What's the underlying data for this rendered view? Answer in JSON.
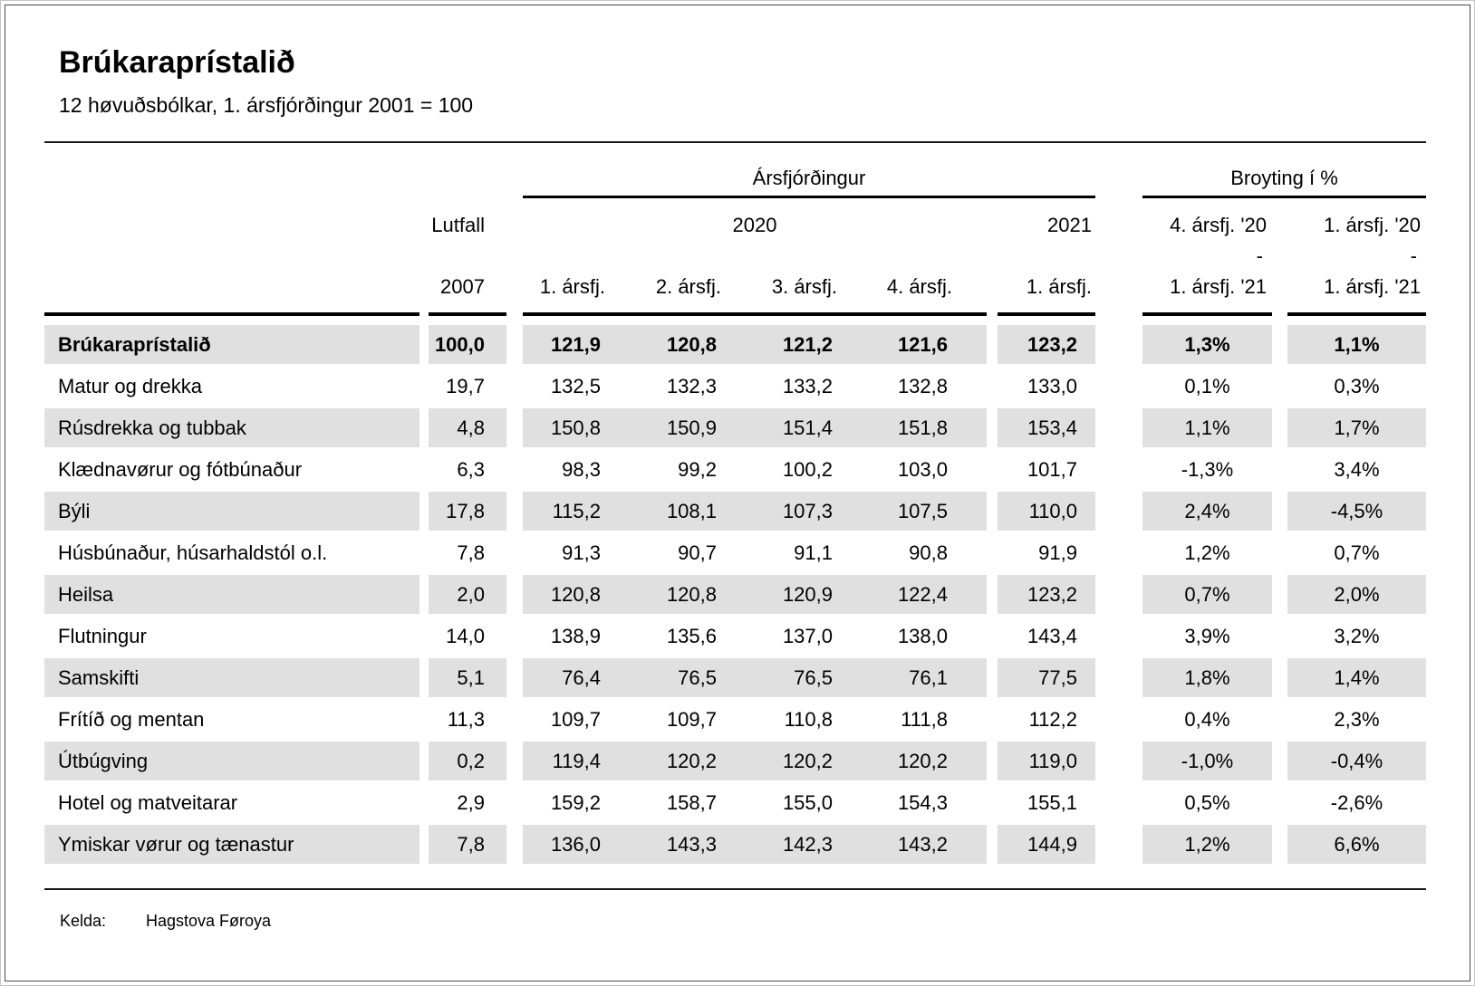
{
  "chart_data": {
    "type": "table",
    "title": "Brúkaraprístalið",
    "subtitle": "12 høvuðsbólkar, 1. ársfjórðingur 2001 = 100",
    "header": {
      "group_quarter": "Ársfjórðingur",
      "group_change": "Broyting í %",
      "lutfall": "Lutfall",
      "lutfall_year": "2007",
      "year_2020": "2020",
      "year_2021": "2021",
      "q_labels": [
        "1. ársfj.",
        "2. ársfj.",
        "3. ársfj.",
        "4. ársfj."
      ],
      "q_2021": "1. ársfj.",
      "change_qoq_top": "4. ársfj. '20",
      "change_qoq_dash": "-",
      "change_qoq_bottom": "1. ársfj. '21",
      "change_yoy_top": "1. ársfj. '20",
      "change_yoy_dash": "-",
      "change_yoy_bottom": "1. ársfj. '21"
    },
    "columns": [
      "Lutfall 2007",
      "2020 1. ársfj.",
      "2020 2. ársfj.",
      "2020 3. ársfj.",
      "2020 4. ársfj.",
      "2021 1. ársfj.",
      "Broyting í % 4. ársfj. '20 - 1. ársfj. '21",
      "Broyting í % 1. ársfj. '20 - 1. ársfj. '21"
    ],
    "rows": [
      {
        "label": "Brúkaraprístalið",
        "bold": true,
        "weight_2007": "100,0",
        "index_2020": [
          "121,9",
          "120,8",
          "121,2",
          "121,6"
        ],
        "index_2021_q1": "123,2",
        "change_qoq": "1,3%",
        "change_yoy": "1,1%"
      },
      {
        "label": "Matur og drekka",
        "bold": false,
        "weight_2007": "19,7",
        "index_2020": [
          "132,5",
          "132,3",
          "133,2",
          "132,8"
        ],
        "index_2021_q1": "133,0",
        "change_qoq": "0,1%",
        "change_yoy": "0,3%"
      },
      {
        "label": "Rúsdrekka og tubbak",
        "bold": false,
        "weight_2007": "4,8",
        "index_2020": [
          "150,8",
          "150,9",
          "151,4",
          "151,8"
        ],
        "index_2021_q1": "153,4",
        "change_qoq": "1,1%",
        "change_yoy": "1,7%"
      },
      {
        "label": "Klædnavørur og fótbúnaður",
        "bold": false,
        "weight_2007": "6,3",
        "index_2020": [
          "98,3",
          "99,2",
          "100,2",
          "103,0"
        ],
        "index_2021_q1": "101,7",
        "change_qoq": "-1,3%",
        "change_yoy": "3,4%"
      },
      {
        "label": "Býli",
        "bold": false,
        "weight_2007": "17,8",
        "index_2020": [
          "115,2",
          "108,1",
          "107,3",
          "107,5"
        ],
        "index_2021_q1": "110,0",
        "change_qoq": "2,4%",
        "change_yoy": "-4,5%"
      },
      {
        "label": "Húsbúnaður, húsarhaldstól o.l.",
        "bold": false,
        "weight_2007": "7,8",
        "index_2020": [
          "91,3",
          "90,7",
          "91,1",
          "90,8"
        ],
        "index_2021_q1": "91,9",
        "change_qoq": "1,2%",
        "change_yoy": "0,7%"
      },
      {
        "label": "Heilsa",
        "bold": false,
        "weight_2007": "2,0",
        "index_2020": [
          "120,8",
          "120,8",
          "120,9",
          "122,4"
        ],
        "index_2021_q1": "123,2",
        "change_qoq": "0,7%",
        "change_yoy": "2,0%"
      },
      {
        "label": "Flutningur",
        "bold": false,
        "weight_2007": "14,0",
        "index_2020": [
          "138,9",
          "135,6",
          "137,0",
          "138,0"
        ],
        "index_2021_q1": "143,4",
        "change_qoq": "3,9%",
        "change_yoy": "3,2%"
      },
      {
        "label": "Samskifti",
        "bold": false,
        "weight_2007": "5,1",
        "index_2020": [
          "76,4",
          "76,5",
          "76,5",
          "76,1"
        ],
        "index_2021_q1": "77,5",
        "change_qoq": "1,8%",
        "change_yoy": "1,4%"
      },
      {
        "label": "Frítíð og mentan",
        "bold": false,
        "weight_2007": "11,3",
        "index_2020": [
          "109,7",
          "109,7",
          "110,8",
          "111,8"
        ],
        "index_2021_q1": "112,2",
        "change_qoq": "0,4%",
        "change_yoy": "2,3%"
      },
      {
        "label": "Útbúgving",
        "bold": false,
        "weight_2007": "0,2",
        "index_2020": [
          "119,4",
          "120,2",
          "120,2",
          "120,2"
        ],
        "index_2021_q1": "119,0",
        "change_qoq": "-1,0%",
        "change_yoy": "-0,4%"
      },
      {
        "label": "Hotel og matveitarar",
        "bold": false,
        "weight_2007": "2,9",
        "index_2020": [
          "159,2",
          "158,7",
          "155,0",
          "154,3"
        ],
        "index_2021_q1": "155,1",
        "change_qoq": "0,5%",
        "change_yoy": "-2,6%"
      },
      {
        "label": "Ymiskar vørur og tænastur",
        "bold": false,
        "weight_2007": "7,8",
        "index_2020": [
          "136,0",
          "143,3",
          "142,3",
          "143,2"
        ],
        "index_2021_q1": "144,9",
        "change_qoq": "1,2%",
        "change_yoy": "6,6%"
      }
    ],
    "footer": {
      "kelda_label": "Kelda:",
      "source": "Hagstova Føroya"
    },
    "colors": {
      "stripe": "#e0e0e0",
      "rule": "#1a1a1a",
      "text": "#000000"
    },
    "layout": {
      "grid": "off",
      "striped_rows": true,
      "first_row_bold": true
    }
  }
}
